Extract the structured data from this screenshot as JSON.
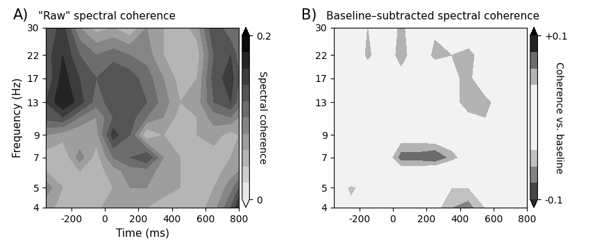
{
  "chart_data": [
    {
      "type": "contour",
      "annotations": [
        "A)"
      ],
      "title": "\"Raw\" spectral coherence",
      "x_label": "Time (ms)",
      "y_label": "Frequency (Hz)",
      "colorbar_label": "Spectral coherence",
      "log": "y",
      "x": [
        -350,
        -250,
        -150,
        -50,
        50,
        150,
        250,
        350,
        450,
        550,
        650,
        750,
        800
      ],
      "y": [
        4,
        5,
        6,
        7,
        9,
        11,
        13,
        17,
        22,
        30
      ],
      "xlim": [
        -350,
        800
      ],
      "ylim": [
        4,
        30
      ],
      "xticks": [
        -200,
        0,
        200,
        400,
        600,
        800
      ],
      "yticks": [
        4,
        5,
        7,
        9,
        13,
        17,
        22,
        30
      ],
      "color_range": [
        0,
        0.2
      ],
      "color_ticks": [
        0,
        0.2
      ],
      "cells": [
        [
          0.07,
          0.05,
          0.04,
          0.05,
          0.08,
          0.07,
          0.06,
          0.05,
          0.06,
          0.05,
          0.07,
          0.12,
          0.16
        ],
        [
          0.09,
          0.06,
          0.05,
          0.04,
          0.06,
          0.08,
          0.08,
          0.07,
          0.06,
          0.06,
          0.06,
          0.09,
          0.12
        ],
        [
          0.06,
          0.05,
          0.06,
          0.05,
          0.07,
          0.09,
          0.09,
          0.07,
          0.06,
          0.06,
          0.05,
          0.07,
          0.08
        ],
        [
          0.05,
          0.04,
          0.09,
          0.05,
          0.1,
          0.12,
          0.14,
          0.08,
          0.06,
          0.05,
          0.05,
          0.06,
          0.07
        ],
        [
          0.08,
          0.07,
          0.06,
          0.07,
          0.15,
          0.12,
          0.04,
          0.06,
          0.05,
          0.06,
          0.07,
          0.05,
          0.06
        ],
        [
          0.13,
          0.14,
          0.1,
          0.08,
          0.12,
          0.13,
          0.1,
          0.08,
          0.05,
          0.06,
          0.09,
          0.1,
          0.08
        ],
        [
          0.14,
          0.18,
          0.15,
          0.11,
          0.13,
          0.14,
          0.12,
          0.09,
          0.06,
          0.07,
          0.12,
          0.14,
          0.11
        ],
        [
          0.12,
          0.17,
          0.14,
          0.12,
          0.14,
          0.13,
          0.11,
          0.08,
          0.05,
          0.06,
          0.13,
          0.15,
          0.12
        ],
        [
          0.13,
          0.16,
          0.12,
          0.1,
          0.11,
          0.1,
          0.09,
          0.06,
          0.04,
          0.05,
          0.12,
          0.14,
          0.11
        ],
        [
          0.12,
          0.15,
          0.08,
          0.05,
          0.06,
          0.04,
          0.08,
          0.06,
          0.05,
          0.07,
          0.14,
          0.1,
          0.12
        ]
      ]
    },
    {
      "type": "contour",
      "annotations": [
        "B)"
      ],
      "title": "Baseline–subtracted spectral coherence",
      "colorbar_label": "Coherence vs. baseline",
      "log": "y",
      "x": [
        -350,
        -250,
        -150,
        -50,
        50,
        150,
        250,
        350,
        450,
        550,
        650,
        750,
        800
      ],
      "y": [
        4,
        5,
        6,
        7,
        9,
        11,
        13,
        17,
        22,
        30
      ],
      "xlim": [
        -350,
        800
      ],
      "ylim": [
        4,
        30
      ],
      "xticks": [
        -200,
        0,
        200,
        400,
        600,
        800
      ],
      "yticks": [
        4,
        5,
        7,
        9,
        13,
        17,
        22,
        30
      ],
      "color_range": [
        -0.1,
        0.1
      ],
      "color_ticks": [
        -0.1,
        {
          "value": 0.1,
          "label": "+0.1"
        }
      ],
      "cells": [
        [
          0,
          -0.03,
          -0.04,
          0,
          0,
          0,
          -0.03,
          -0.06,
          -0.07,
          -0.04,
          0,
          0,
          0
        ],
        [
          0,
          -0.05,
          -0.02,
          0,
          0,
          0,
          -0.02,
          -0.04,
          -0.04,
          -0.03,
          -0.02,
          0,
          0
        ],
        [
          0,
          0.04,
          0.01,
          0,
          0.02,
          0.02,
          0.01,
          0,
          0,
          0,
          0,
          0,
          0
        ],
        [
          0,
          0,
          0,
          0.01,
          0.07,
          0.07,
          0.08,
          0.05,
          0.02,
          0,
          0,
          0,
          0
        ],
        [
          0,
          0,
          0,
          0,
          0.02,
          0.02,
          0.01,
          0.01,
          0,
          0,
          0,
          0,
          0
        ],
        [
          0,
          0,
          0,
          0,
          0,
          0.02,
          0,
          0,
          0.03,
          0.04,
          0.03,
          0,
          0
        ],
        [
          0,
          0,
          0,
          0,
          0,
          0.02,
          0,
          0.02,
          0.06,
          0.05,
          0.02,
          0,
          0
        ],
        [
          0,
          0,
          0,
          0,
          0.02,
          0,
          0,
          0.03,
          0.05,
          0,
          0,
          0,
          0
        ],
        [
          0,
          -0.02,
          0.05,
          0,
          0.06,
          0,
          0.05,
          0.04,
          0.05,
          0.02,
          0,
          0,
          0
        ],
        [
          0,
          0,
          0.04,
          0,
          0.05,
          0,
          0.03,
          0.04,
          0,
          0,
          0.03,
          0.02,
          0
        ]
      ]
    }
  ]
}
